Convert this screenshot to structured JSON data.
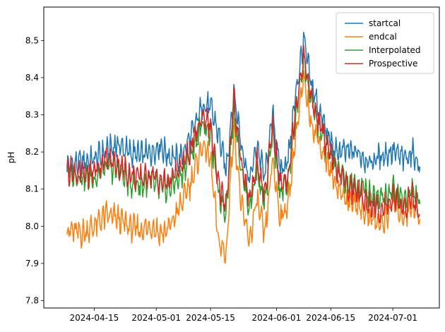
{
  "chart_data": {
    "type": "line",
    "title": "",
    "xlabel": "",
    "ylabel": "pH",
    "x_range": [
      "2024-04-02",
      "2024-07-13"
    ],
    "ylim": [
      7.78,
      8.59
    ],
    "x_ticks": [
      "2024-04-15",
      "2024-05-01",
      "2024-05-15",
      "2024-06-01",
      "2024-06-15",
      "2024-07-01"
    ],
    "y_ticks": [
      7.8,
      7.9,
      8.0,
      8.1,
      8.2,
      8.3,
      8.4,
      8.5
    ],
    "y_tick_labels": [
      "7.8",
      "7.9",
      "8.0",
      "8.1",
      "8.2",
      "8.3",
      "8.4",
      "8.5"
    ],
    "grid": false,
    "legend_position": "top-right",
    "series": [
      {
        "name": "startcal",
        "color": "#1f77b4",
        "points": [
          [
            "2024-04-08",
            8.16
          ],
          [
            "2024-04-12",
            8.17
          ],
          [
            "2024-04-15",
            8.18
          ],
          [
            "2024-04-18",
            8.2
          ],
          [
            "2024-04-21",
            8.22
          ],
          [
            "2024-04-24",
            8.2
          ],
          [
            "2024-04-27",
            8.19
          ],
          [
            "2024-04-30",
            8.2
          ],
          [
            "2024-05-02",
            8.22
          ],
          [
            "2024-05-04",
            8.19
          ],
          [
            "2024-05-07",
            8.18
          ],
          [
            "2024-05-10",
            8.24
          ],
          [
            "2024-05-13",
            8.33
          ],
          [
            "2024-05-15",
            8.32
          ],
          [
            "2024-05-17",
            8.25
          ],
          [
            "2024-05-19",
            8.15
          ],
          [
            "2024-05-21",
            8.36
          ],
          [
            "2024-05-23",
            8.22
          ],
          [
            "2024-05-25",
            8.12
          ],
          [
            "2024-05-27",
            8.22
          ],
          [
            "2024-05-29",
            8.13
          ],
          [
            "2024-05-31",
            8.3
          ],
          [
            "2024-06-02",
            8.15
          ],
          [
            "2024-06-04",
            8.18
          ],
          [
            "2024-06-06",
            8.36
          ],
          [
            "2024-06-08",
            8.5
          ],
          [
            "2024-06-10",
            8.38
          ],
          [
            "2024-06-13",
            8.28
          ],
          [
            "2024-06-16",
            8.2
          ],
          [
            "2024-06-19",
            8.2
          ],
          [
            "2024-06-22",
            8.2
          ],
          [
            "2024-06-25",
            8.17
          ],
          [
            "2024-06-28",
            8.19
          ],
          [
            "2024-07-01",
            8.2
          ],
          [
            "2024-07-04",
            8.18
          ],
          [
            "2024-07-06",
            8.2
          ],
          [
            "2024-07-08",
            8.16
          ]
        ]
      },
      {
        "name": "endcal",
        "color": "#ff7f0e",
        "points": [
          [
            "2024-04-08",
            7.99
          ],
          [
            "2024-04-12",
            7.98
          ],
          [
            "2024-04-15",
            8.0
          ],
          [
            "2024-04-18",
            8.03
          ],
          [
            "2024-04-21",
            8.02
          ],
          [
            "2024-04-24",
            8.0
          ],
          [
            "2024-04-27",
            7.99
          ],
          [
            "2024-04-30",
            8.0
          ],
          [
            "2024-05-02",
            7.98
          ],
          [
            "2024-05-04",
            7.99
          ],
          [
            "2024-05-07",
            8.05
          ],
          [
            "2024-05-10",
            8.12
          ],
          [
            "2024-05-13",
            8.22
          ],
          [
            "2024-05-15",
            8.18
          ],
          [
            "2024-05-17",
            7.96
          ],
          [
            "2024-05-19",
            7.92
          ],
          [
            "2024-05-21",
            8.27
          ],
          [
            "2024-05-23",
            8.05
          ],
          [
            "2024-05-25",
            7.96
          ],
          [
            "2024-05-27",
            8.07
          ],
          [
            "2024-05-29",
            7.97
          ],
          [
            "2024-05-31",
            8.18
          ],
          [
            "2024-06-02",
            8.02
          ],
          [
            "2024-06-04",
            8.06
          ],
          [
            "2024-06-06",
            8.25
          ],
          [
            "2024-06-08",
            8.39
          ],
          [
            "2024-06-10",
            8.28
          ],
          [
            "2024-06-13",
            8.2
          ],
          [
            "2024-06-16",
            8.12
          ],
          [
            "2024-06-19",
            8.07
          ],
          [
            "2024-06-22",
            8.06
          ],
          [
            "2024-06-25",
            8.03
          ],
          [
            "2024-06-28",
            8.0
          ],
          [
            "2024-07-01",
            8.06
          ],
          [
            "2024-07-04",
            8.03
          ],
          [
            "2024-07-06",
            8.06
          ],
          [
            "2024-07-08",
            8.02
          ]
        ]
      },
      {
        "name": "Interpolated",
        "color": "#2ca02c",
        "points": [
          [
            "2024-04-08",
            8.15
          ],
          [
            "2024-04-12",
            8.13
          ],
          [
            "2024-04-15",
            8.13
          ],
          [
            "2024-04-18",
            8.16
          ],
          [
            "2024-04-21",
            8.15
          ],
          [
            "2024-04-24",
            8.12
          ],
          [
            "2024-04-27",
            8.11
          ],
          [
            "2024-04-30",
            8.12
          ],
          [
            "2024-05-02",
            8.1
          ],
          [
            "2024-05-04",
            8.1
          ],
          [
            "2024-05-07",
            8.13
          ],
          [
            "2024-05-10",
            8.19
          ],
          [
            "2024-05-13",
            8.28
          ],
          [
            "2024-05-15",
            8.25
          ],
          [
            "2024-05-17",
            8.09
          ],
          [
            "2024-05-19",
            8.04
          ],
          [
            "2024-05-21",
            8.32
          ],
          [
            "2024-05-23",
            8.15
          ],
          [
            "2024-05-25",
            8.05
          ],
          [
            "2024-05-27",
            8.15
          ],
          [
            "2024-05-29",
            8.06
          ],
          [
            "2024-05-31",
            8.25
          ],
          [
            "2024-06-02",
            8.09
          ],
          [
            "2024-06-04",
            8.12
          ],
          [
            "2024-06-06",
            8.3
          ],
          [
            "2024-06-08",
            8.45
          ],
          [
            "2024-06-10",
            8.33
          ],
          [
            "2024-06-13",
            8.24
          ],
          [
            "2024-06-16",
            8.16
          ],
          [
            "2024-06-19",
            8.12
          ],
          [
            "2024-06-22",
            8.11
          ],
          [
            "2024-06-25",
            8.09
          ],
          [
            "2024-06-28",
            8.08
          ],
          [
            "2024-07-01",
            8.1
          ],
          [
            "2024-07-04",
            8.07
          ],
          [
            "2024-07-06",
            8.1
          ],
          [
            "2024-07-08",
            8.06
          ]
        ]
      },
      {
        "name": "Prospective",
        "color": "#d62728",
        "points": [
          [
            "2024-04-08",
            8.15
          ],
          [
            "2024-04-12",
            8.14
          ],
          [
            "2024-04-15",
            8.15
          ],
          [
            "2024-04-18",
            8.18
          ],
          [
            "2024-04-21",
            8.17
          ],
          [
            "2024-04-24",
            8.14
          ],
          [
            "2024-04-27",
            8.13
          ],
          [
            "2024-04-30",
            8.14
          ],
          [
            "2024-05-02",
            8.12
          ],
          [
            "2024-05-04",
            8.12
          ],
          [
            "2024-05-07",
            8.15
          ],
          [
            "2024-05-10",
            8.21
          ],
          [
            "2024-05-13",
            8.3
          ],
          [
            "2024-05-15",
            8.27
          ],
          [
            "2024-05-17",
            8.11
          ],
          [
            "2024-05-19",
            8.06
          ],
          [
            "2024-05-21",
            8.34
          ],
          [
            "2024-05-23",
            8.17
          ],
          [
            "2024-05-25",
            8.07
          ],
          [
            "2024-05-27",
            8.17
          ],
          [
            "2024-05-29",
            8.08
          ],
          [
            "2024-05-31",
            8.27
          ],
          [
            "2024-06-02",
            8.11
          ],
          [
            "2024-06-04",
            8.14
          ],
          [
            "2024-06-06",
            8.32
          ],
          [
            "2024-06-08",
            8.46
          ],
          [
            "2024-06-10",
            8.34
          ],
          [
            "2024-06-13",
            8.25
          ],
          [
            "2024-06-16",
            8.16
          ],
          [
            "2024-06-19",
            8.11
          ],
          [
            "2024-06-22",
            8.09
          ],
          [
            "2024-06-25",
            8.06
          ],
          [
            "2024-06-28",
            8.04
          ],
          [
            "2024-07-01",
            8.08
          ],
          [
            "2024-07-04",
            8.05
          ],
          [
            "2024-07-06",
            8.08
          ],
          [
            "2024-07-08",
            8.03
          ]
        ]
      }
    ]
  }
}
